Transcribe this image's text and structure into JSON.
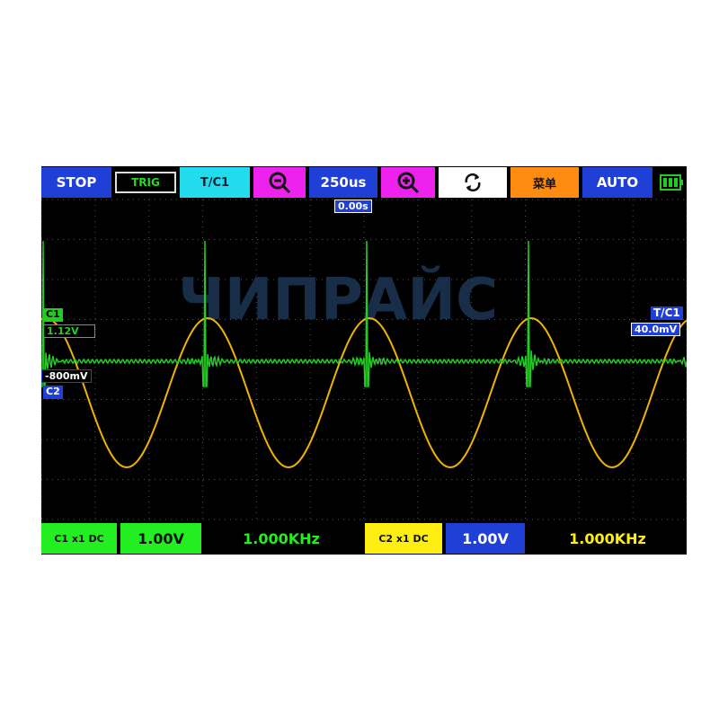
{
  "toolbar": {
    "stop": "STOP",
    "trig": "TRIG",
    "trigger_source": "T/C1",
    "timebase": "250us",
    "menu": "菜单",
    "auto": "AUTO"
  },
  "markers": {
    "time_offset": "0.00s",
    "c1_label": "C1",
    "c1_offset": "1.12V",
    "c2_offset": "-800mV",
    "c2_label": "C2",
    "trigger_label": "T/C1",
    "trigger_level": "40.0mV"
  },
  "watermark": "ЧИПРАЙС",
  "status": {
    "c1_mode": "C1 x1 DC",
    "c1_scale": "1.00V",
    "c1_freq": "1.000KHz",
    "c2_mode": "C2 x1 DC",
    "c2_scale": "1.00V",
    "c2_freq": "1.000KHz"
  }
}
